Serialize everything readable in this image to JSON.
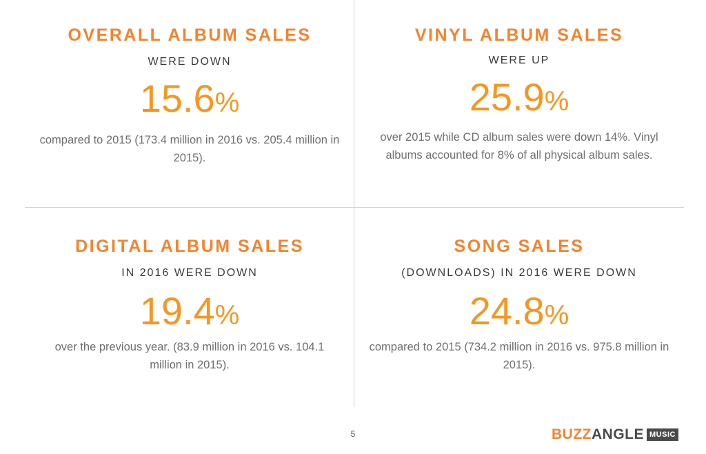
{
  "panels": [
    {
      "heading": "OVERALL ALBUM SALES",
      "subheading": "WERE DOWN",
      "value": "15.6",
      "unit": "%",
      "description": "compared to 2015 (173.4 million in 2016 vs. 205.4 million in 2015)."
    },
    {
      "heading": "VINYL ALBUM SALES",
      "subheading": "WERE UP",
      "value": "25.9",
      "unit": "%",
      "description": "over 2015 while CD album sales were down 14%. Vinyl albums accounted for 8% of all physical album sales."
    },
    {
      "heading": "DIGITAL ALBUM SALES",
      "subheading": "IN 2016 WERE DOWN",
      "value": "19.4",
      "unit": "%",
      "description": "over the previous year. (83.9 million in 2016 vs. 104.1 million in 2015)."
    },
    {
      "heading": "SONG SALES",
      "subheading": "(DOWNLOADS) IN 2016 WERE DOWN",
      "value": "24.8",
      "unit": "%",
      "description": "compared to 2015 (734.2 million in 2016 vs. 975.8 million in 2015)."
    }
  ],
  "footer": {
    "page_number": "5",
    "logo": {
      "part1": "BUZZ",
      "part2": "ANGLE",
      "badge": "MUSIC"
    }
  },
  "colors": {
    "heading": "#f7822a",
    "value": "#f7961f",
    "text": "#6e6e6e",
    "divider": "#cfcfcf"
  }
}
